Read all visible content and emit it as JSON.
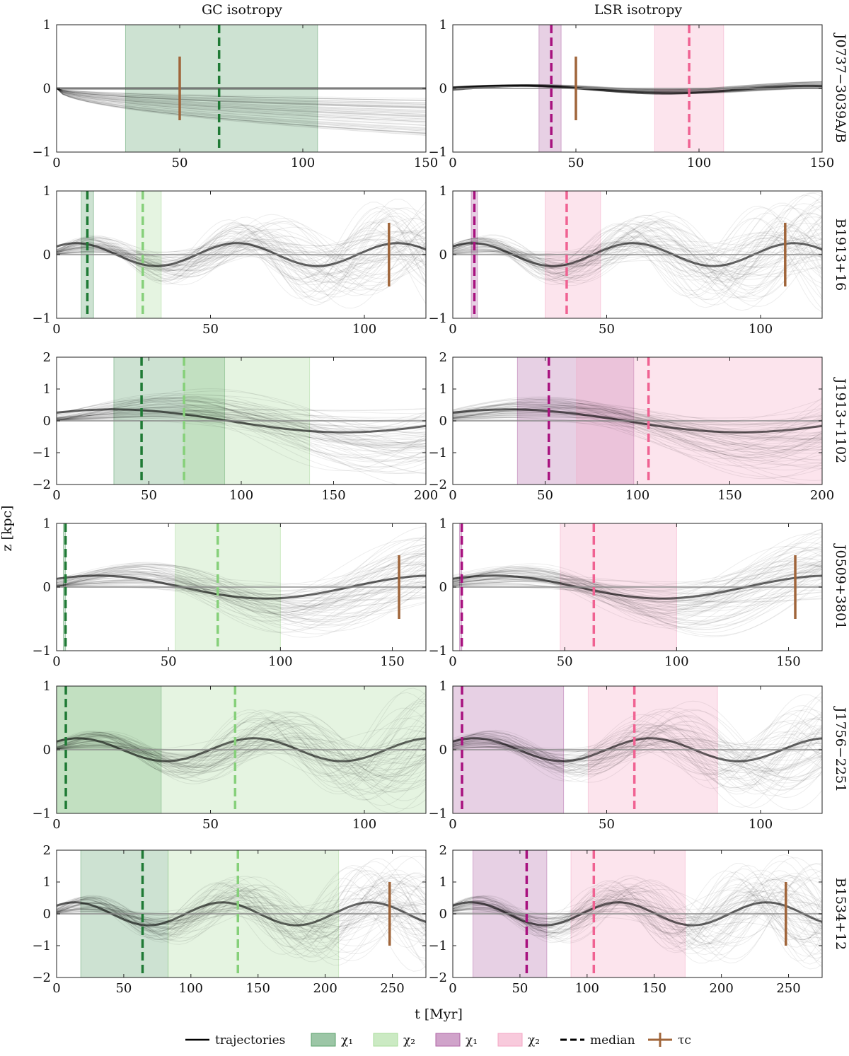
{
  "figure": {
    "column_titles": [
      "GC isotropy",
      "LSR isotropy"
    ],
    "ylabel": "z [kpc]",
    "xlabel": "t [Myr]",
    "legend": [
      {
        "name": "legend-trajectories",
        "label": "trajectories",
        "kind": "line",
        "color": "#000000"
      },
      {
        "name": "legend-gc-chi1",
        "label": "χ₁",
        "kind": "box",
        "color": "#5aa06a"
      },
      {
        "name": "legend-gc-chi2",
        "label": "χ₂",
        "kind": "box",
        "color": "#a9dc9b"
      },
      {
        "name": "legend-lsr-chi1",
        "label": "χ₁",
        "kind": "box",
        "color": "#b065a6"
      },
      {
        "name": "legend-lsr-chi2",
        "label": "χ₂",
        "kind": "box",
        "color": "#f4a6c4"
      },
      {
        "name": "legend-median",
        "label": "median",
        "kind": "dash",
        "color": "#000000"
      },
      {
        "name": "legend-tau",
        "label": "τc",
        "kind": "tau",
        "color": "#a0653a"
      }
    ],
    "colors": {
      "gc_chi1": "#5aa06a",
      "gc_chi2": "#a9dc9b",
      "gc_median1": "#1f7a35",
      "gc_median2": "#86d07a",
      "lsr_chi1": "#b065a6",
      "lsr_chi2": "#f4a6c4",
      "lsr_median1": "#a8127f",
      "lsr_median2": "#f06292",
      "tau": "#a0653a"
    }
  },
  "chart_data": [
    {
      "name": "J0737−3039A/B",
      "type": "line",
      "xlim": [
        0,
        150
      ],
      "ylim": [
        -1,
        1
      ],
      "xticks": [
        "0",
        "50",
        "100",
        "150"
      ],
      "xtick_values": [
        0,
        50,
        100,
        150
      ],
      "yticks": [
        "−1",
        "0",
        "1"
      ],
      "ytick_values": [
        -1,
        0,
        1
      ],
      "tau_c": 50,
      "gc": {
        "chi1": [
          28,
          106
        ],
        "median1": 66,
        "chi2": null,
        "median2": null
      },
      "lsr": {
        "chi1": [
          35,
          44
        ],
        "median1": 40,
        "chi2": [
          82,
          110
        ],
        "median2": 96
      }
    },
    {
      "name": "B1913+16",
      "type": "line",
      "xlim": [
        0,
        120
      ],
      "ylim": [
        -1,
        1
      ],
      "xticks": [
        "0",
        "50",
        "100"
      ],
      "xtick_values": [
        0,
        50,
        100
      ],
      "yticks": [
        "−1",
        "0",
        "1"
      ],
      "ytick_values": [
        -1,
        0,
        1
      ],
      "tau_c": 108,
      "gc": {
        "chi1": [
          8,
          12
        ],
        "median1": 10,
        "chi2": [
          26,
          34
        ],
        "median2": 28
      },
      "lsr": {
        "chi1": [
          6,
          8
        ],
        "median1": 7,
        "chi2": [
          30,
          48
        ],
        "median2": 37
      }
    },
    {
      "name": "J1913+1102",
      "type": "line",
      "xlim": [
        0,
        200
      ],
      "ylim": [
        -2,
        2
      ],
      "xticks": [
        "0",
        "50",
        "100",
        "150",
        "200"
      ],
      "xtick_values": [
        0,
        50,
        100,
        150,
        200
      ],
      "yticks": [
        "−2",
        "−1",
        "0",
        "1",
        "2"
      ],
      "ytick_values": [
        -2,
        -1,
        0,
        1,
        2
      ],
      "tau_c": null,
      "gc": {
        "chi1": [
          31,
          91
        ],
        "median1": 46,
        "chi2": [
          69,
          137
        ],
        "median2": 69
      },
      "lsr": {
        "chi1": [
          35,
          98
        ],
        "median1": 52,
        "chi2": [
          67,
          200
        ],
        "median2": 106
      }
    },
    {
      "name": "J0509+3801",
      "type": "line",
      "xlim": [
        0,
        165
      ],
      "ylim": [
        -1,
        1
      ],
      "xticks": [
        "0",
        "50",
        "100",
        "150"
      ],
      "xtick_values": [
        0,
        50,
        100,
        150
      ],
      "yticks": [
        "−1",
        "0",
        "1"
      ],
      "ytick_values": [
        -1,
        0,
        1
      ],
      "tau_c": 153,
      "gc": {
        "chi1": [
          3,
          4
        ],
        "median1": 4,
        "chi2": [
          53,
          100
        ],
        "median2": 72
      },
      "lsr": {
        "chi1": [
          3,
          4
        ],
        "median1": 4,
        "chi2": [
          48,
          100
        ],
        "median2": 63
      }
    },
    {
      "name": "J1756−2251",
      "type": "line",
      "xlim": [
        0,
        120
      ],
      "ylim": [
        -1,
        1
      ],
      "xticks": [
        "0",
        "50",
        "100"
      ],
      "xtick_values": [
        0,
        50,
        100
      ],
      "yticks": [
        "−1",
        "0",
        "1"
      ],
      "ytick_values": [
        -1,
        0,
        1
      ],
      "tau_c": null,
      "gc": {
        "chi1": [
          0,
          34
        ],
        "median1": 3,
        "chi2": [
          0,
          120
        ],
        "median2": 58
      },
      "lsr": {
        "chi1": [
          0,
          36
        ],
        "median1": 3,
        "chi2": [
          44,
          86
        ],
        "median2": 59
      }
    },
    {
      "name": "B1534+12",
      "type": "line",
      "xlim": [
        0,
        275
      ],
      "ylim": [
        -2,
        2
      ],
      "xticks": [
        "0",
        "50",
        "100",
        "150",
        "200",
        "250"
      ],
      "xtick_values": [
        0,
        50,
        100,
        150,
        200,
        250
      ],
      "yticks": [
        "−2",
        "−1",
        "0",
        "1",
        "2"
      ],
      "ytick_values": [
        -2,
        -1,
        0,
        1,
        2
      ],
      "tau_c": 248,
      "gc": {
        "chi1": [
          18,
          83
        ],
        "median1": 64,
        "chi2": [
          83,
          210
        ],
        "median2": 135
      },
      "lsr": {
        "chi1": [
          15,
          70
        ],
        "median1": 55,
        "chi2": [
          88,
          173
        ],
        "median2": 105
      }
    }
  ]
}
